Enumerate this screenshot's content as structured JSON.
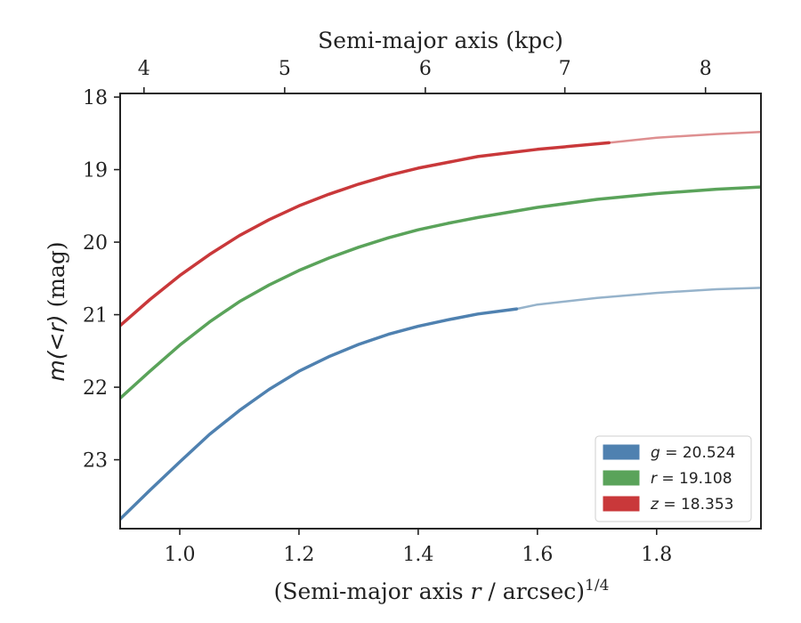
{
  "chart_data": {
    "type": "line",
    "xlabel": "(Semi-major axis r / arcsec)",
    "xlabel_pre": "(Semi-major axis ",
    "xlabel_var": "r",
    "xlabel_post": " / arcsec)",
    "xlabel_sup": "1/4",
    "ylabel": "m(<r) (mag)",
    "ylabel_math": "m(<r)",
    "ylabel_unit": " (mag)",
    "top_xlabel": "Semi-major axis (kpc)",
    "xlim": [
      0.9,
      1.975
    ],
    "ylim": [
      23.95,
      17.95
    ],
    "y_inverted": true,
    "x_ticks": [
      1.0,
      1.2,
      1.4,
      1.6,
      1.8
    ],
    "x_tick_labels": [
      "1.0",
      "1.2",
      "1.4",
      "1.6",
      "1.8"
    ],
    "y_ticks": [
      18,
      19,
      20,
      21,
      22,
      23
    ],
    "y_tick_labels": [
      "18",
      "19",
      "20",
      "21",
      "22",
      "23"
    ],
    "top_x_ticks_kpc": [
      4,
      5,
      6,
      7,
      8
    ],
    "top_x_tick_labels": [
      "4",
      "5",
      "6",
      "7",
      "8"
    ],
    "top_x_tick_positions": [
      0.94,
      1.176,
      1.412,
      1.646,
      1.882
    ],
    "legend_position": "lower-right",
    "grid": false,
    "series": [
      {
        "name": "g = 20.524",
        "legend_var": "g",
        "legend_value": " = 20.524",
        "color": "#4f81b0",
        "faded_color": "#96b3cb",
        "solid_until_x": 1.565,
        "points": [
          [
            0.9,
            23.82
          ],
          [
            0.95,
            23.42
          ],
          [
            1.0,
            23.03
          ],
          [
            1.05,
            22.65
          ],
          [
            1.1,
            22.32
          ],
          [
            1.15,
            22.03
          ],
          [
            1.2,
            21.78
          ],
          [
            1.25,
            21.58
          ],
          [
            1.3,
            21.41
          ],
          [
            1.35,
            21.27
          ],
          [
            1.4,
            21.16
          ],
          [
            1.45,
            21.07
          ],
          [
            1.5,
            20.99
          ],
          [
            1.565,
            20.92
          ],
          [
            1.6,
            20.86
          ],
          [
            1.7,
            20.77
          ],
          [
            1.8,
            20.7
          ],
          [
            1.9,
            20.65
          ],
          [
            1.975,
            20.63
          ]
        ]
      },
      {
        "name": "r = 19.108",
        "legend_var": "r",
        "legend_value": " = 19.108",
        "color": "#5aa35a",
        "faded_color": "#9cc89c",
        "solid_until_x": 1.975,
        "points": [
          [
            0.9,
            22.15
          ],
          [
            0.95,
            21.78
          ],
          [
            1.0,
            21.42
          ],
          [
            1.05,
            21.1
          ],
          [
            1.1,
            20.82
          ],
          [
            1.15,
            20.59
          ],
          [
            1.2,
            20.39
          ],
          [
            1.25,
            20.22
          ],
          [
            1.3,
            20.07
          ],
          [
            1.35,
            19.94
          ],
          [
            1.4,
            19.83
          ],
          [
            1.45,
            19.74
          ],
          [
            1.5,
            19.66
          ],
          [
            1.6,
            19.52
          ],
          [
            1.7,
            19.41
          ],
          [
            1.8,
            19.33
          ],
          [
            1.9,
            19.27
          ],
          [
            1.975,
            19.24
          ]
        ]
      },
      {
        "name": "z = 18.353",
        "legend_var": "z",
        "legend_value": " = 18.353",
        "color": "#c9383a",
        "faded_color": "#de8f90",
        "solid_until_x": 1.72,
        "points": [
          [
            0.9,
            21.15
          ],
          [
            0.95,
            20.79
          ],
          [
            1.0,
            20.46
          ],
          [
            1.05,
            20.17
          ],
          [
            1.1,
            19.91
          ],
          [
            1.15,
            19.69
          ],
          [
            1.2,
            19.5
          ],
          [
            1.25,
            19.34
          ],
          [
            1.3,
            19.2
          ],
          [
            1.35,
            19.08
          ],
          [
            1.4,
            18.98
          ],
          [
            1.45,
            18.9
          ],
          [
            1.5,
            18.82
          ],
          [
            1.6,
            18.72
          ],
          [
            1.72,
            18.63
          ],
          [
            1.8,
            18.56
          ],
          [
            1.9,
            18.51
          ],
          [
            1.975,
            18.48
          ]
        ]
      }
    ]
  }
}
